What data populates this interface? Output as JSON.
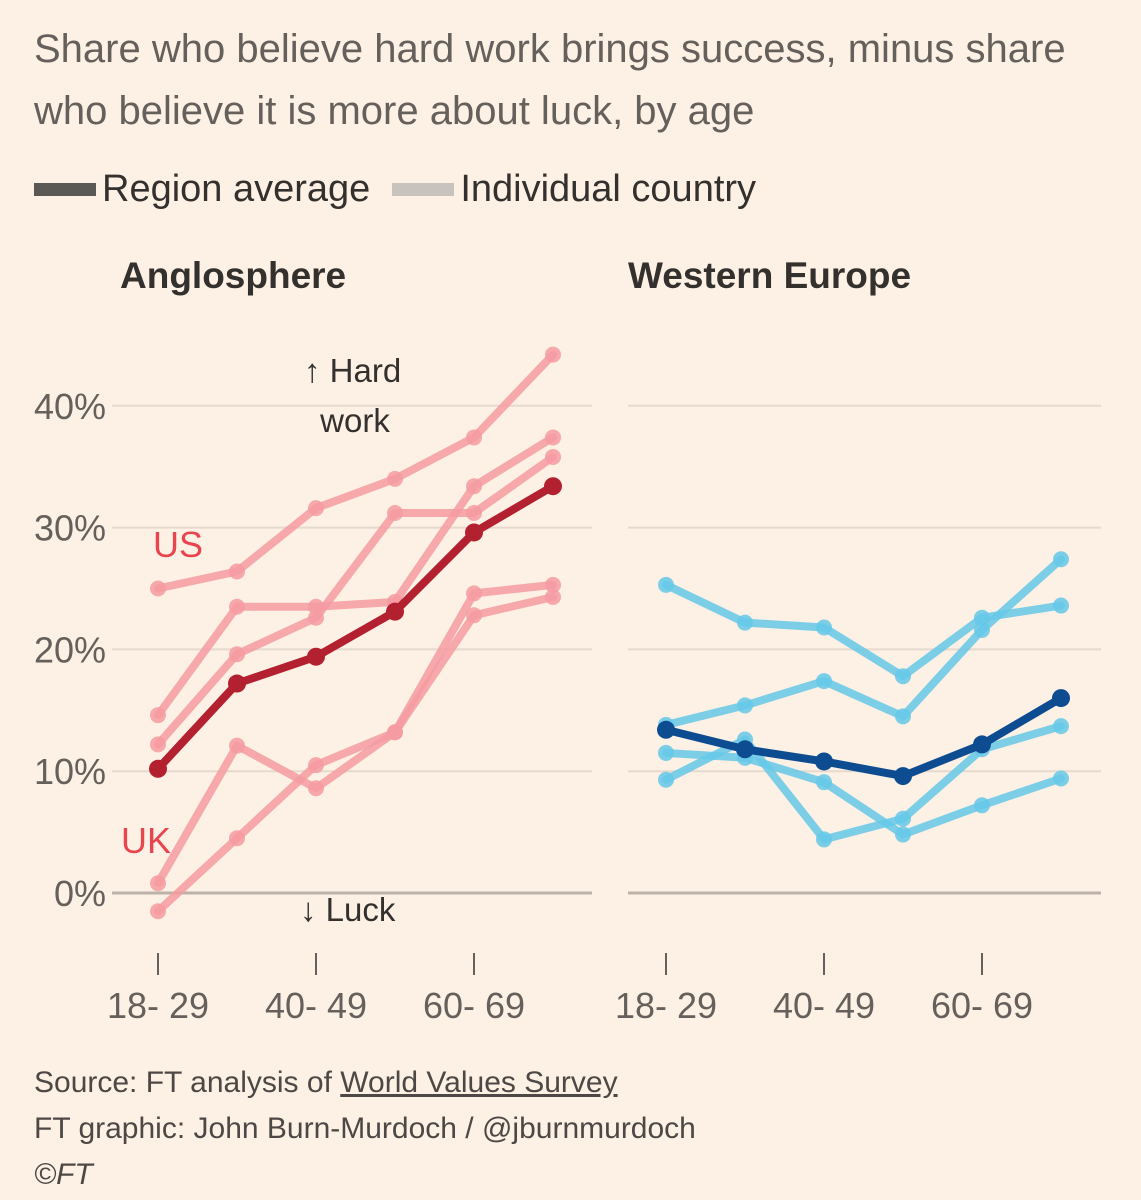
{
  "title": "Share who believe hard work brings success, minus share who believe it is more about luck, by age",
  "legend": {
    "region_average": "Region average",
    "individual_country": "Individual country"
  },
  "colors": {
    "background": "#fdf1e5",
    "anglo_country": "#f59ba1",
    "anglo_average": "#b3202f",
    "anglo_label": "#e8454f",
    "europe_country": "#65c8e8",
    "europe_average": "#0e4c92",
    "legend_average": "#5b5956",
    "legend_country": "#c9c3bd",
    "gridline": "#e6d9ce",
    "zero_line": "#bcb2a9"
  },
  "source": {
    "prefix": "Source: FT analysis of ",
    "link_text": "World Values Survey",
    "graphic": "FT graphic: John Burn-Murdoch / @jburnmurdoch",
    "copyright": "©FT"
  },
  "chart_data": [
    {
      "type": "line",
      "title": "Anglosphere",
      "x_tick_labels": [
        "18- 29",
        "40- 49",
        "60- 69"
      ],
      "x": [
        0,
        1,
        2,
        3,
        4,
        5
      ],
      "ylim": [
        -5,
        45
      ],
      "yticks": [
        0,
        10,
        20,
        30,
        40
      ],
      "y_tick_labels": [
        "0%",
        "10%",
        "20%",
        "30%",
        "40%"
      ],
      "annotations": [
        "↑ Hard",
        "work",
        "↓ Luck"
      ],
      "series": [
        {
          "name": "US",
          "role": "country",
          "values": [
            25,
            26.4,
            31.6,
            34,
            37.4,
            44.2
          ]
        },
        {
          "role": "country",
          "values": [
            14.6,
            23.5,
            23.5,
            23.9,
            33.4,
            37.4
          ]
        },
        {
          "role": "country",
          "values": [
            12.2,
            19.6,
            22.6,
            31.2,
            31.2,
            35.8
          ]
        },
        {
          "name": "UK",
          "role": "country",
          "values": [
            0.8,
            12.1,
            8.6,
            13.2,
            24.6,
            25.3
          ]
        },
        {
          "role": "country",
          "values": [
            -1.5,
            4.5,
            10.5,
            13.2,
            22.8,
            24.3
          ]
        },
        {
          "role": "average",
          "values": [
            10.2,
            17.2,
            19.4,
            23.1,
            29.6,
            33.4
          ]
        }
      ]
    },
    {
      "type": "line",
      "title": "Western Europe",
      "x_tick_labels": [
        "18- 29",
        "40- 49",
        "60- 69"
      ],
      "x": [
        0,
        1,
        2,
        3,
        4,
        5
      ],
      "ylim": [
        -5,
        45
      ],
      "yticks": [
        0,
        10,
        20,
        30,
        40
      ],
      "series": [
        {
          "role": "country",
          "values": [
            25.3,
            22.2,
            21.8,
            17.8,
            22.6,
            23.6
          ]
        },
        {
          "role": "country",
          "values": [
            13.8,
            15.4,
            17.4,
            14.5,
            21.6,
            27.4
          ]
        },
        {
          "role": "country",
          "values": [
            11.5,
            11.1,
            9.1,
            4.8,
            7.2,
            9.4
          ]
        },
        {
          "role": "country",
          "values": [
            9.3,
            12.6,
            4.4,
            6.1,
            11.8,
            13.7
          ]
        },
        {
          "role": "average",
          "values": [
            13.4,
            11.8,
            10.8,
            9.6,
            12.2,
            16
          ]
        }
      ]
    }
  ]
}
